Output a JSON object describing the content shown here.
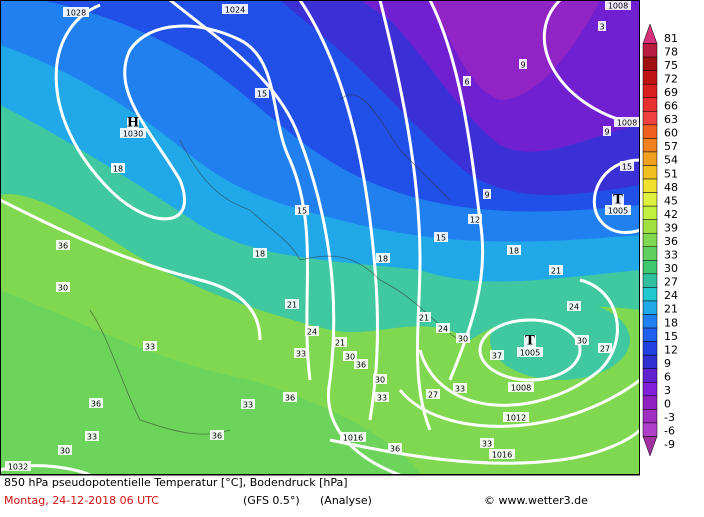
{
  "footer": {
    "title": "850 hPa pseudopotentielle Temperatur [°C], Bodendruck [hPa]",
    "date": "Montag, 24-12-2018  06 UTC",
    "model": "(GFS 0.5°)",
    "run": "(Analyse)",
    "credit": "© www.wetter3.de"
  },
  "colorbar": {
    "ticks": [
      81,
      78,
      75,
      72,
      69,
      66,
      63,
      60,
      57,
      54,
      51,
      48,
      45,
      42,
      39,
      36,
      33,
      30,
      27,
      24,
      21,
      18,
      15,
      12,
      9,
      6,
      3,
      0,
      -3,
      -6,
      -9
    ],
    "colors": [
      "#d8307a",
      "#b81c40",
      "#a01010",
      "#c01414",
      "#d82020",
      "#e83030",
      "#f04040",
      "#f06020",
      "#f08020",
      "#f0a020",
      "#f0c020",
      "#f0e030",
      "#e0f040",
      "#c0f040",
      "#a0e040",
      "#80d850",
      "#60d060",
      "#40c870",
      "#30c0a0",
      "#20c8d0",
      "#20a8e8",
      "#2080f0",
      "#2060f0",
      "#2040e0",
      "#3030d0",
      "#6020d0",
      "#8020d8",
      "#9020c0",
      "#a030c0",
      "#b040c8",
      "#a030a0"
    ]
  },
  "map_labels": [
    "1028",
    "1024",
    "1008",
    "H",
    "1030",
    "15",
    "18",
    "15",
    "18",
    "18",
    "15",
    "12",
    "9",
    "9",
    "6",
    "9",
    "3",
    "1008",
    "15",
    "T",
    "1005",
    "18",
    "21",
    "24",
    "27",
    "30",
    "T",
    "1005",
    "37",
    "30",
    "21",
    "24",
    "21",
    "24",
    "33",
    "30",
    "36",
    "30",
    "33",
    "33",
    "36",
    "36",
    "33",
    "30",
    "36",
    "33",
    "30",
    "36",
    "1008",
    "1012",
    "1016",
    "1016",
    "36",
    "33",
    "27",
    "33",
    "21",
    "1032"
  ]
}
